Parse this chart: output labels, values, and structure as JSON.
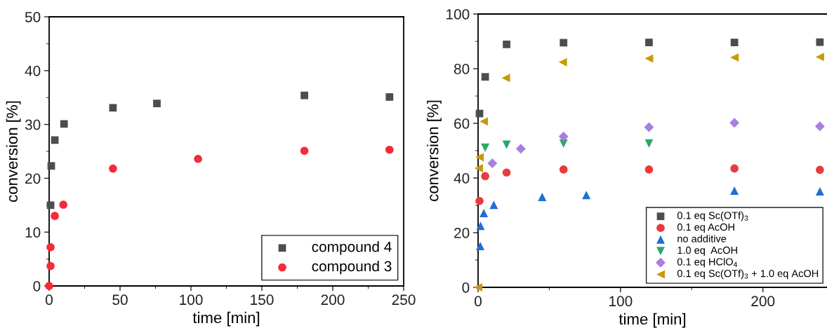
{
  "chart_data": [
    {
      "type": "scatter",
      "xlabel": "time [min]",
      "ylabel": "conversion [%]",
      "xlim": [
        0,
        250
      ],
      "xticks": [
        0,
        50,
        100,
        150,
        200,
        250
      ],
      "ylim": [
        0,
        50
      ],
      "yticks": [
        0,
        10,
        20,
        30,
        40,
        50
      ],
      "grid": false,
      "legend": "bottom right",
      "series": [
        {
          "name": "compound 4",
          "color": "#4d4d4d",
          "marker": "square",
          "x": [
            1,
            1.5,
            4,
            10.5,
            45,
            76,
            180,
            240
          ],
          "values": [
            15.0,
            22.3,
            27.1,
            30.1,
            33.1,
            33.9,
            35.4,
            35.1
          ]
        },
        {
          "name": "compound 3",
          "color": "#f52a3a",
          "marker": "circle",
          "x": [
            0,
            1,
            1,
            4,
            10,
            45,
            105,
            180,
            240
          ],
          "values": [
            0,
            3.7,
            7.2,
            13.0,
            15.1,
            21.8,
            23.6,
            25.1,
            25.3
          ]
        }
      ]
    },
    {
      "type": "scatter",
      "xlabel": "time [min]",
      "ylabel": "conversion [%]",
      "xlim": [
        0,
        245
      ],
      "xticks": [
        0,
        100,
        200
      ],
      "ylim": [
        0,
        100
      ],
      "yticks": [
        0,
        20,
        40,
        60,
        80,
        100
      ],
      "grid": false,
      "legend": "bottom right",
      "series": [
        {
          "name": "0.1 eq Sc(OTf)$_{3}$",
          "color": "#4d4d4d",
          "marker": "square",
          "x": [
            1,
            5,
            20,
            60,
            120,
            180,
            240
          ],
          "values": [
            63.6,
            77.0,
            88.9,
            89.5,
            89.6,
            89.6,
            89.7
          ]
        },
        {
          "name": "0.1 eq AcOH",
          "color": "#e83c3c",
          "marker": "circle",
          "x": [
            1,
            5,
            20,
            60,
            120,
            180,
            240
          ],
          "values": [
            31.6,
            40.7,
            42.0,
            43.1,
            43.1,
            43.5,
            43.0
          ]
        },
        {
          "name": "no additive",
          "color": "#1f6fd6",
          "marker": "triangle",
          "x": [
            1.5,
            1.7,
            4,
            11,
            45,
            76,
            180,
            240
          ],
          "values": [
            15.1,
            22.5,
            27.2,
            30.2,
            33.1,
            33.8,
            35.4,
            35.1
          ]
        },
        {
          "name": "1.0 eq  AcOH",
          "color": "#2aa86a",
          "marker": "triangle_down",
          "x": [
            5,
            20,
            60,
            120
          ],
          "values": [
            51.1,
            52.2,
            52.6,
            52.6
          ]
        },
        {
          "name": "0.1 eq HClO$_{4}$",
          "color": "#a87ee0",
          "marker": "diamond",
          "x": [
            10,
            30,
            60,
            120,
            180,
            240
          ],
          "values": [
            45.4,
            50.7,
            55.2,
            58.6,
            60.2,
            58.9
          ]
        },
        {
          "name": "0.1 eq Sc(OTf)$_{3}$ + 1.0 eq AcOH",
          "color": "#c89a0a",
          "marker": "triangle_left",
          "x": [
            0,
            0.5,
            1,
            4,
            19.5,
            59.5,
            120,
            180,
            240
          ],
          "values": [
            0,
            43.6,
            47.6,
            60.7,
            76.6,
            82.4,
            83.7,
            84.1,
            84.3
          ]
        }
      ]
    }
  ]
}
